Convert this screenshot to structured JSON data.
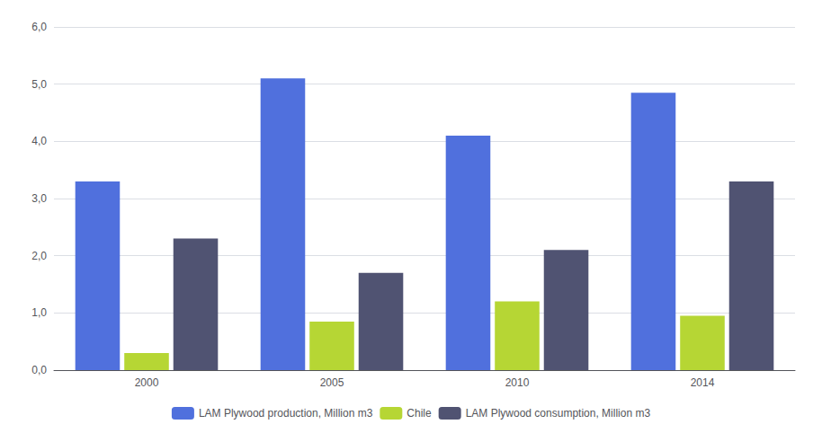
{
  "chart_data": {
    "type": "bar",
    "categories": [
      "2000",
      "2005",
      "2010",
      "2014"
    ],
    "series": [
      {
        "name": "LAM Plywood production, Million m3",
        "values": [
          3.3,
          5.1,
          4.1,
          4.85
        ]
      },
      {
        "name": "Chile",
        "values": [
          0.3,
          0.85,
          1.2,
          0.95
        ]
      },
      {
        "name": "LAM Plywood consumption, Million m3",
        "values": [
          2.3,
          1.7,
          2.1,
          3.3
        ]
      }
    ],
    "ylim": [
      0,
      6.0
    ],
    "yticks": [
      {
        "value": 0.0,
        "label": "0,0"
      },
      {
        "value": 1.0,
        "label": "1,0"
      },
      {
        "value": 2.0,
        "label": "2,0"
      },
      {
        "value": 3.0,
        "label": "3,0"
      },
      {
        "value": 4.0,
        "label": "4,0"
      },
      {
        "value": 5.0,
        "label": "5,0"
      },
      {
        "value": 6.0,
        "label": "6,0"
      }
    ],
    "grid": true,
    "legend": "bottom"
  }
}
